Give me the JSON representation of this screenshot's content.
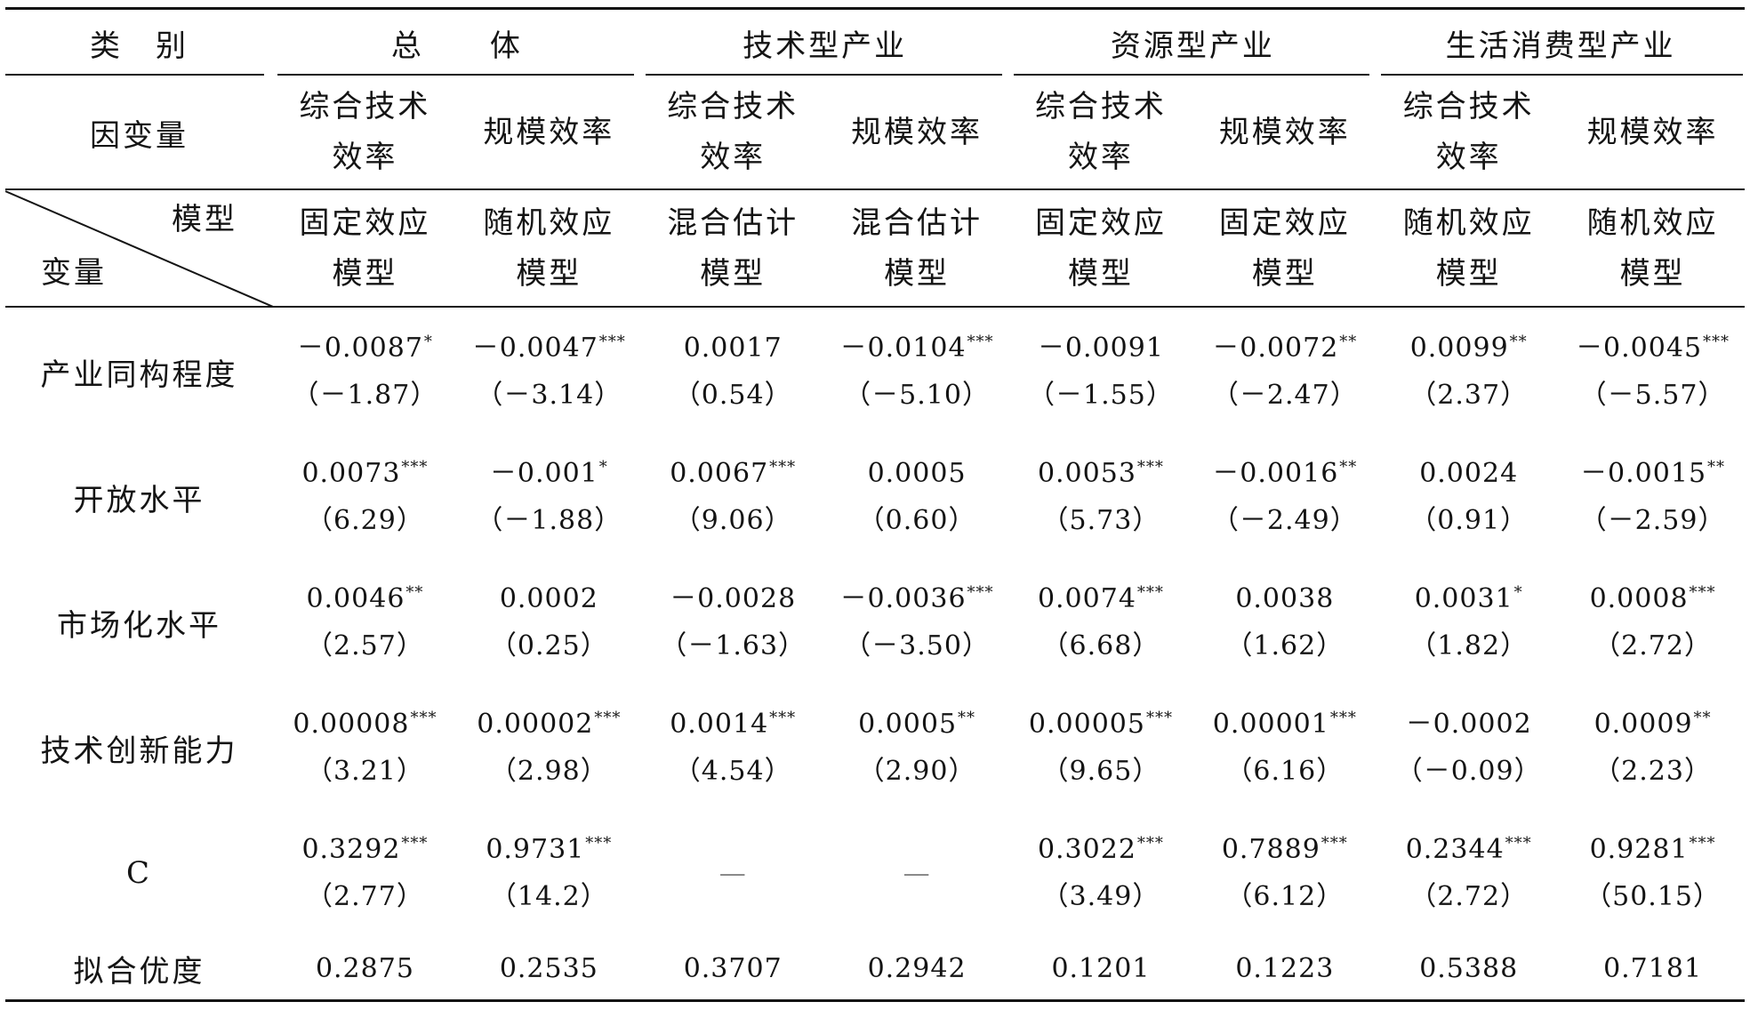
{
  "header": {
    "category_label": "类　别",
    "groups": [
      "总　　体",
      "技术型产业",
      "资源型产业",
      "生活消费型产业"
    ],
    "dependent_label": "因变量",
    "dependent_vars": [
      "综合技术效率",
      "规模效率",
      "综合技术效率",
      "规模效率",
      "综合技术效率",
      "规模效率",
      "综合技术效率",
      "规模效率"
    ],
    "diagonal_top_label": "模型",
    "diagonal_bottom_label": "变量",
    "models": [
      "固定效应模型",
      "随机效应模型",
      "混合估计模型",
      "混合估计模型",
      "固定效应模型",
      "固定效应模型",
      "随机效应模型",
      "随机效应模型"
    ]
  },
  "rows": [
    {
      "label": "产业同构程度",
      "cells": [
        {
          "coef": "－0.0087",
          "sig": "*",
          "t": "（－1.87）"
        },
        {
          "coef": "－0.0047",
          "sig": "***",
          "t": "（－3.14）"
        },
        {
          "coef": "0.0017",
          "t": "（0.54）"
        },
        {
          "coef": "－0.0104",
          "sig": "***",
          "t": "（－5.10）"
        },
        {
          "coef": "－0.0091",
          "t": "（－1.55）"
        },
        {
          "coef": "－0.0072",
          "sig": "**",
          "t": "（－2.47）"
        },
        {
          "coef": "0.0099",
          "sig": "**",
          "t": "（2.37）"
        },
        {
          "coef": "－0.0045",
          "sig": "***",
          "t": "（－5.57）"
        }
      ]
    },
    {
      "label": "开放水平",
      "cells": [
        {
          "coef": "0.0073",
          "sig": "***",
          "t": "（6.29）"
        },
        {
          "coef": "－0.001",
          "sig": "*",
          "t": "（－1.88）"
        },
        {
          "coef": "0.0067",
          "sig": "***",
          "t": "（9.06）"
        },
        {
          "coef": "0.0005",
          "t": "（0.60）"
        },
        {
          "coef": "0.0053",
          "sig": "***",
          "t": "（5.73）"
        },
        {
          "coef": "－0.0016",
          "sig": "**",
          "t": "（－2.49）"
        },
        {
          "coef": "0.0024",
          "t": "（0.91）"
        },
        {
          "coef": "－0.0015",
          "sig": "**",
          "t": "（－2.59）"
        }
      ]
    },
    {
      "label": "市场化水平",
      "cells": [
        {
          "coef": "0.0046",
          "sig": "**",
          "t": "（2.57）"
        },
        {
          "coef": "0.0002",
          "t": "（0.25）"
        },
        {
          "coef": "－0.0028",
          "t": "（－1.63）"
        },
        {
          "coef": "－0.0036",
          "sig": "***",
          "t": "（－3.50）"
        },
        {
          "coef": "0.0074",
          "sig": "***",
          "t": "（6.68）"
        },
        {
          "coef": "0.0038",
          "t": "（1.62）"
        },
        {
          "coef": "0.0031",
          "sig": "*",
          "t": "（1.82）"
        },
        {
          "coef": "0.0008",
          "sig": "***",
          "t": "（2.72）"
        }
      ]
    },
    {
      "label": "技术创新能力",
      "cells": [
        {
          "coef": "0.00008",
          "sig": "***",
          "t": "（3.21）"
        },
        {
          "coef": "0.00002",
          "sig": "***",
          "t": "（2.98）"
        },
        {
          "coef": "0.0014",
          "sig": "***",
          "t": "（4.54）"
        },
        {
          "coef": "0.0005",
          "sig": "**",
          "t": "（2.90）"
        },
        {
          "coef": "0.00005",
          "sig": "***",
          "t": "（9.65）"
        },
        {
          "coef": "0.00001",
          "sig": "***",
          "t": "（6.16）"
        },
        {
          "coef": "－0.0002",
          "t": "（－0.09）"
        },
        {
          "coef": "0.0009",
          "sig": "**",
          "t": "（2.23）"
        }
      ]
    },
    {
      "label": "C",
      "cells": [
        {
          "coef": "0.3292",
          "sig": "***",
          "t": "（2.77）"
        },
        {
          "coef": "0.9731",
          "sig": "***",
          "t": "（14.2）"
        },
        {
          "coef": "—"
        },
        {
          "coef": "—"
        },
        {
          "coef": "0.3022",
          "sig": "***",
          "t": "（3.49）"
        },
        {
          "coef": "0.7889",
          "sig": "***",
          "t": "（6.12）"
        },
        {
          "coef": "0.2344",
          "sig": "***",
          "t": "（2.72）"
        },
        {
          "coef": "0.9281",
          "sig": "***",
          "t": "（50.15）"
        }
      ]
    }
  ],
  "fit": {
    "label": "拟合优度",
    "values": [
      "0.2875",
      "0.2535",
      "0.3707",
      "0.2942",
      "0.1201",
      "0.1223",
      "0.5388",
      "0.7181"
    ]
  }
}
